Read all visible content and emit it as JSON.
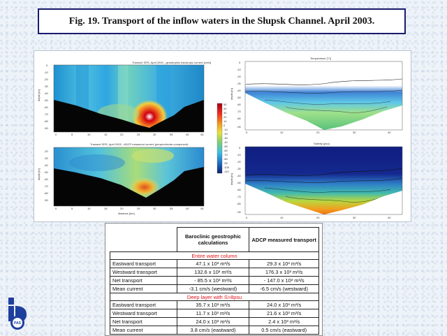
{
  "title": "Fig. 19. Transport of the inflow waters in the Słupsk Channel. April 2003.",
  "figure": {
    "panel_top_left_title": "Transect SRS, April 2003 - geostrophic barotropic current [cm/s]",
    "panel_bottom_left_title": "Transect SRS, April 2003 - ADCP measured current (perpendicular component)",
    "panel_top_right_title": "Temperature [°C]",
    "panel_bottom_right_title": "Salinity [psu]",
    "xlabel": "distance [km]",
    "ylabel": "depth [m]",
    "left_yticks_top": [
      "0",
      "-10",
      "-20",
      "-30",
      "-40",
      "-50",
      "-60",
      "-70",
      "-80",
      "-90"
    ],
    "left_yticks_bottom": [
      "-20",
      "-30",
      "-40",
      "-50",
      "-60",
      "-70",
      "-80",
      "-90"
    ],
    "left_xticks": [
      "0",
      "5",
      "10",
      "15",
      "20",
      "25",
      "30",
      "35",
      "40",
      "45"
    ],
    "right_yticks": [
      "0",
      "-10",
      "-20",
      "-30",
      "-40",
      "-50",
      "-60",
      "-70",
      "-80",
      "-90"
    ],
    "right_xticks": [
      "0",
      "10",
      "20",
      "30",
      "40"
    ],
    "colorbar_ticks": [
      "50",
      "40",
      "30",
      "20",
      "10",
      "0",
      "-10",
      "-20",
      "-30",
      "-40",
      "-50",
      "-60",
      "-70",
      "-80",
      "-90",
      "-100",
      "-110"
    ]
  },
  "table": {
    "col1_header": "Baroclinic geostrophic calculations",
    "col2_header": "ADCP measured transport",
    "sections": [
      {
        "label": "Entire water column",
        "rows": [
          {
            "label": "Eastward transport",
            "baroclinic": "47.1 x 10³ m³/s",
            "adcp": "29.3 x 10³ m³/s"
          },
          {
            "label": "Westward transport",
            "baroclinic": "132.6 x 10³ m³/s",
            "adcp": "176.3 x 10³ m³/s"
          },
          {
            "label": "Net transport",
            "baroclinic": "- 85.5 x 10³ m³/s",
            "adcp": "- 147.0 x 10³ m³/s"
          },
          {
            "label": "Mean current",
            "baroclinic": "-3.1 cm/s (westward)",
            "adcp": "-6.5 cm/s (westward)"
          }
        ]
      },
      {
        "label": "Deep layer with S>8psu",
        "rows": [
          {
            "label": "Eastward transport",
            "baroclinic": "35.7 x 10³ m³/s",
            "adcp": "24.0 x 10³ m³/s"
          },
          {
            "label": "Westward transport",
            "baroclinic": "11.7 x 10³ m³/s",
            "adcp": "21.6 x 10³ m³/s"
          },
          {
            "label": "Net transport",
            "baroclinic": "24.0 x 10³ m³/s",
            "adcp": "2.4 x 10³ m³/s"
          },
          {
            "label": "Mean current",
            "baroclinic": "3.8 cm/s (eastward)",
            "adcp": "0.5 cm/s (eastward)"
          }
        ]
      }
    ]
  },
  "logo": {
    "text": "PAS",
    "icon": "institute-logo-icon"
  },
  "colors": {
    "title_border": "#1b1b6e",
    "section_label": "#e0101a"
  }
}
